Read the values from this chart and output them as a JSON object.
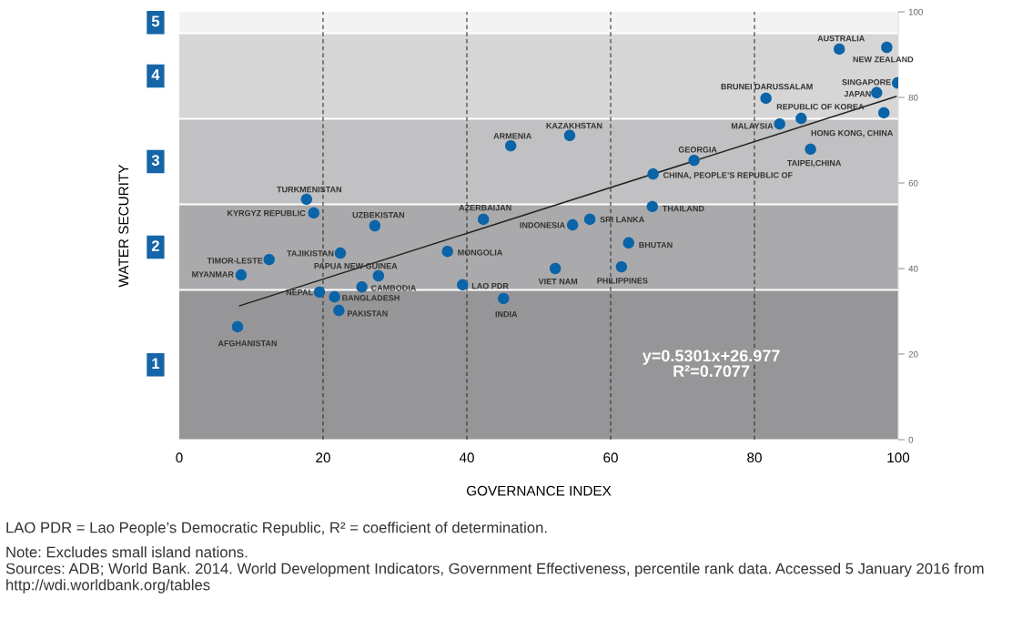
{
  "chart_data": {
    "type": "scatter",
    "xlabel": "GOVERNANCE INDEX",
    "ylabel": "WATER SECURITY",
    "xlim": [
      0,
      100
    ],
    "xticks": [
      0,
      20,
      40,
      60,
      80,
      100
    ],
    "ylim": [
      0,
      100
    ],
    "yticks": [
      0,
      20,
      40,
      60,
      80,
      100
    ],
    "grid": "x",
    "series": [
      {
        "color": "#0b64a8",
        "marker": "circle",
        "x": [
          8.1,
          8.6,
          12.5,
          19.5,
          21.6,
          22.2,
          22.4,
          27.7,
          25.4,
          18.7,
          17.7,
          27.2,
          37.3,
          39.4,
          42.3,
          45.1,
          46.1,
          52.3,
          54.3,
          54.7,
          57.1,
          61.5,
          62.5,
          65.8,
          65.9,
          71.6,
          81.6,
          83.5,
          86.5,
          87.8,
          91.8,
          98.4,
          99.9,
          97.0,
          98.0
        ],
        "values": [
          26.4,
          38.5,
          42.1,
          34.5,
          33.4,
          30.2,
          43.6,
          38.3,
          35.7,
          53.0,
          56.2,
          50.0,
          44.0,
          36.2,
          51.5,
          33.0,
          68.7,
          40.0,
          71.1,
          50.2,
          51.5,
          40.4,
          46.0,
          54.5,
          62.1,
          65.3,
          79.8,
          73.8,
          75.1,
          67.9,
          91.3,
          91.7,
          83.4,
          81.1,
          76.4
        ]
      },
      {
        "type": "line",
        "color": "#222222",
        "marker": "none",
        "line_style": "solid",
        "x": [
          8.4,
          99.7
        ],
        "values": [
          31.3,
          80.2
        ]
      }
    ],
    "bands": [
      {
        "axis": "y",
        "from": 0,
        "to": 35,
        "label": "1",
        "color": "#969698"
      },
      {
        "axis": "y",
        "from": 35,
        "to": 55,
        "label": "2",
        "color": "#aaaaac"
      },
      {
        "axis": "y",
        "from": 55,
        "to": 75,
        "label": "3",
        "color": "#c1c1c3"
      },
      {
        "axis": "y",
        "from": 75,
        "to": 95,
        "label": "4",
        "color": "#d6d6d6"
      },
      {
        "axis": "y",
        "from": 95,
        "to": 100,
        "label": "5",
        "color": "#f3f3f3"
      }
    ],
    "annotations": [
      {
        "text": "AFGHANISTAN",
        "x": 8.1,
        "y": 26.4
      },
      {
        "text": "MYANMAR",
        "x": 8.6,
        "y": 38.5
      },
      {
        "text": "TIMOR-LESTE",
        "x": 12.5,
        "y": 42.1
      },
      {
        "text": "NEPAL",
        "x": 19.5,
        "y": 34.5
      },
      {
        "text": "BANGLADESH",
        "x": 21.6,
        "y": 33.4
      },
      {
        "text": "PAKISTAN",
        "x": 22.2,
        "y": 30.2
      },
      {
        "text": "TAJIKISTAN",
        "x": 22.4,
        "y": 43.6
      },
      {
        "text": "PAPUA NEW GUINEA",
        "x": 27.7,
        "y": 38.3
      },
      {
        "text": "CAMBODIA",
        "x": 25.4,
        "y": 35.7
      },
      {
        "text": "KYRGYZ REPUBLIC",
        "x": 18.7,
        "y": 53.0
      },
      {
        "text": "TURKMENISTAN",
        "x": 17.7,
        "y": 56.2
      },
      {
        "text": "UZBEKISTAN",
        "x": 27.2,
        "y": 50.0
      },
      {
        "text": "MONGOLIA",
        "x": 37.3,
        "y": 44.0
      },
      {
        "text": "LAO PDR",
        "x": 39.4,
        "y": 36.2
      },
      {
        "text": "AZERBAIJAN",
        "x": 42.3,
        "y": 51.5
      },
      {
        "text": "INDIA",
        "x": 45.1,
        "y": 33.0
      },
      {
        "text": "ARMENIA",
        "x": 46.1,
        "y": 68.7
      },
      {
        "text": "VIET NAM",
        "x": 52.3,
        "y": 40.0
      },
      {
        "text": "KAZAKHSTAN",
        "x": 54.3,
        "y": 71.1
      },
      {
        "text": "INDONESIA",
        "x": 54.7,
        "y": 50.2
      },
      {
        "text": "SRI LANKA",
        "x": 57.1,
        "y": 51.5
      },
      {
        "text": "PHILIPPINES",
        "x": 61.5,
        "y": 40.4
      },
      {
        "text": "BHUTAN",
        "x": 62.5,
        "y": 46.0
      },
      {
        "text": "THAILAND",
        "x": 65.8,
        "y": 54.5
      },
      {
        "text": "CHINA, PEOPLE’S REPUBLIC OF",
        "x": 65.9,
        "y": 62.1
      },
      {
        "text": "GEORGIA",
        "x": 71.6,
        "y": 65.3
      },
      {
        "text": "BRUNEI DARUSSALAM",
        "x": 81.6,
        "y": 79.8
      },
      {
        "text": "MALAYSIA",
        "x": 83.5,
        "y": 73.8
      },
      {
        "text": "REPUBLIC OF KOREA",
        "x": 86.5,
        "y": 75.1
      },
      {
        "text": "TAIPEI,CHINA",
        "x": 87.8,
        "y": 67.9
      },
      {
        "text": "AUSTRALIA",
        "x": 91.8,
        "y": 91.3
      },
      {
        "text": "NEW ZEALAND",
        "x": 98.4,
        "y": 91.7
      },
      {
        "text": "SINGAPORE",
        "x": 99.9,
        "y": 83.4
      },
      {
        "text": "JAPAN",
        "x": 97.0,
        "y": 81.1
      },
      {
        "text": "HONG KONG, CHINA",
        "x": 98.0,
        "y": 76.4
      },
      "y=0.5301x+26.977\nR²=0.7077",
      "LAO PDR = Lao People’s Democratic Republic, R² = coefficient of determination.",
      "Note: Excludes small island nations.",
      "Sources: ADB; World Bank. 2014. World Development Indicators, Government Effectiveness, percentile rank data. Accessed 5 January 2016 from http://wdi.worldbank.org/tables"
    ]
  }
}
